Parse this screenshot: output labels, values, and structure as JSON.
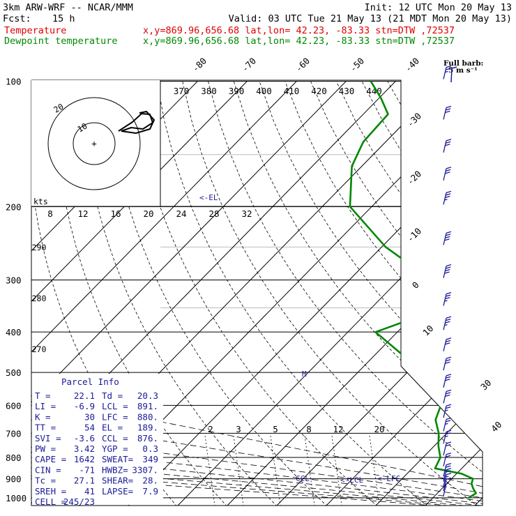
{
  "header": {
    "model": "3km ARW-WRF -- NCAR/MMM",
    "init": "Init: 12 UTC Mon 20 May 13",
    "fcst_label": "Fcst:",
    "fcst_value": "15 h",
    "valid": "Valid: 03 UTC Tue 21 May 13 (21 MDT Mon 20 May 13)",
    "temp_label": "Temperature",
    "temp_info": "x,y=869.96,656.68   lat,lon= 42.23, -83.33  stn=DTW ,72537",
    "dew_label": "Dewpoint temperature",
    "dew_info": "x,y=869.96,656.68   lat,lon= 42.23, -83.33  stn=DTW ,72537"
  },
  "wind_legend": {
    "line1": "Full barb:",
    "line2": "5 m s⁻¹"
  },
  "parcel": {
    "title": "Parcel Info",
    "rows": [
      [
        "T   =",
        "22.1",
        "Td =",
        "20.3"
      ],
      [
        "LI  =",
        "-6.9",
        "LCL =",
        "891."
      ],
      [
        "K   =",
        "30",
        "LFC =",
        "880."
      ],
      [
        "TT  =",
        "54",
        "EL  =",
        "189."
      ],
      [
        "SVI =",
        "-3.6",
        "CCL =",
        "876."
      ],
      [
        "PW  =",
        "3.42",
        "YGP =",
        "0.3"
      ],
      [
        "CAPE =",
        "1642",
        "SWEAT=",
        "349"
      ],
      [
        "CIN =",
        "-71",
        "HWBZ=",
        "3307."
      ],
      [
        "Tc  =",
        "27.1",
        "SHEAR=",
        "28."
      ],
      [
        "SREH =",
        "41",
        "LAPSE=",
        "7.9"
      ],
      [
        "CELL =",
        "245/23",
        "",
        ""
      ]
    ]
  },
  "chart_data": {
    "type": "skew-t log-p",
    "title": "Skew-T sounding, stn=DTW ,72537",
    "ylabel": "Pressure (hPa)",
    "pressure_ticks": [
      "100",
      "200",
      "300",
      "400",
      "500",
      "600",
      "700",
      "800",
      "900",
      "1000"
    ],
    "isotherm_labels": [
      "-80",
      "-70",
      "-60",
      "-50",
      "-40",
      "-30",
      "-20",
      "-10",
      "0",
      "10",
      "30",
      "40"
    ],
    "dry_adiabat_labels": [
      "290",
      "280",
      "270"
    ],
    "theta_e_labels": [
      "370",
      "380",
      "390",
      "400",
      "410",
      "420",
      "430",
      "440"
    ],
    "mixing_ratio_labels": [
      "2",
      "3",
      "5",
      "8",
      "12",
      "20"
    ],
    "level_markers": [
      "<-EL",
      "M",
      "CCL-",
      "<-LCL",
      "<-LFC"
    ],
    "series": [
      {
        "name": "Temperature",
        "color": "#e00000",
        "points": [
          [
            1000,
            20.1
          ],
          [
            975,
            25.2
          ],
          [
            950,
            22.1
          ],
          [
            925,
            19.0
          ],
          [
            900,
            17.2
          ],
          [
            875,
            17.3
          ],
          [
            850,
            16.2
          ],
          [
            800,
            14.6
          ],
          [
            750,
            12.2
          ],
          [
            700,
            9.4
          ],
          [
            650,
            6.4
          ],
          [
            600,
            3.1
          ],
          [
            550,
            -1.0
          ],
          [
            500,
            -5.3
          ],
          [
            450,
            -9.8
          ],
          [
            400,
            -15.0
          ],
          [
            350,
            -20.5
          ],
          [
            300,
            -28.0
          ],
          [
            250,
            -36.5
          ],
          [
            200,
            -49.0
          ],
          [
            180,
            -56.0
          ],
          [
            160,
            -59.0
          ],
          [
            140,
            -59.5
          ],
          [
            120,
            -56.5
          ],
          [
            100,
            -53.0
          ]
        ]
      },
      {
        "name": "Dewpoint temperature",
        "color": "#008800",
        "points": [
          [
            1000,
            17.2
          ],
          [
            975,
            17.8
          ],
          [
            950,
            16.3
          ],
          [
            925,
            15.0
          ],
          [
            900,
            14.3
          ],
          [
            875,
            11.0
          ],
          [
            850,
            4.6
          ],
          [
            800,
            3.5
          ],
          [
            750,
            0.8
          ],
          [
            700,
            -1.6
          ],
          [
            650,
            -4.9
          ],
          [
            600,
            -6.7
          ],
          [
            550,
            -9.8
          ],
          [
            500,
            -14.1
          ],
          [
            450,
            -25.1
          ],
          [
            400,
            -34.4
          ],
          [
            350,
            -25.7
          ],
          [
            300,
            -33.4
          ],
          [
            250,
            -49.2
          ],
          [
            200,
            -64.4
          ],
          [
            160,
            -72.0
          ],
          [
            140,
            -74.5
          ],
          [
            120,
            -75.0
          ],
          [
            110,
            -79.5
          ],
          [
            100,
            -85.0
          ]
        ]
      }
    ],
    "hodograph": {
      "ring_labels": [
        "10",
        "20"
      ],
      "speed_ticks": [
        "8",
        "12",
        "16",
        "20",
        "24",
        "28",
        "32"
      ],
      "speed_units": "kts"
    },
    "wind_barbs": [
      [
        1000,
        4
      ],
      [
        975,
        6
      ],
      [
        950,
        8
      ],
      [
        925,
        10
      ],
      [
        900,
        11
      ],
      [
        850,
        12
      ],
      [
        800,
        12
      ],
      [
        750,
        13
      ],
      [
        700,
        14
      ],
      [
        650,
        14
      ],
      [
        600,
        15
      ],
      [
        550,
        15
      ],
      [
        500,
        16
      ],
      [
        450,
        17
      ],
      [
        400,
        18
      ],
      [
        350,
        18
      ],
      [
        300,
        20
      ],
      [
        250,
        20
      ],
      [
        200,
        18
      ],
      [
        175,
        17
      ],
      [
        150,
        16
      ],
      [
        125,
        15
      ],
      [
        100,
        14
      ]
    ]
  }
}
